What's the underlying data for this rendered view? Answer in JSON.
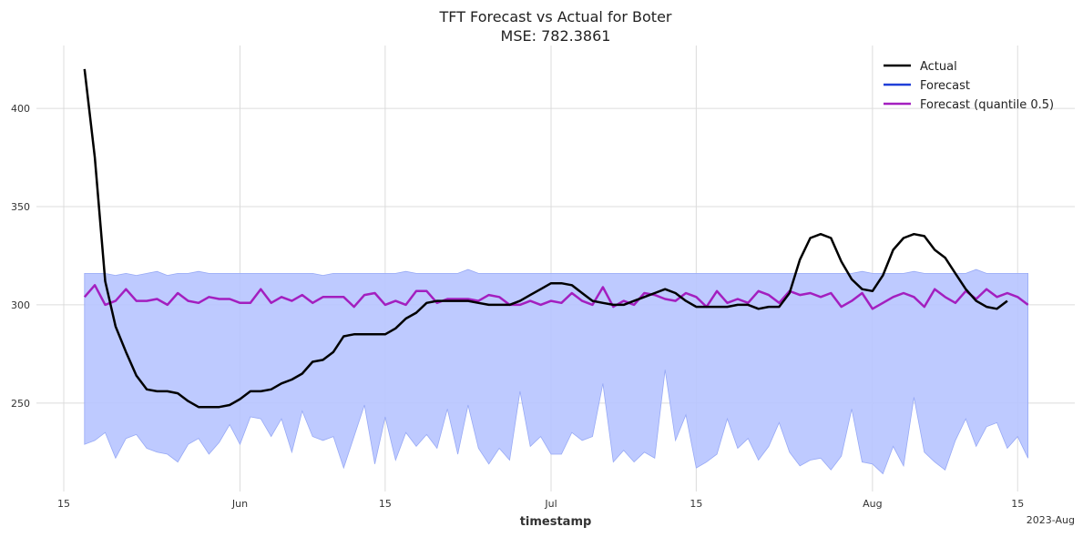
{
  "chart_data": {
    "type": "line",
    "title": "TFT Forecast vs Actual for Boter",
    "subtitle": "MSE: 782.3861",
    "xlabel": "timestamp",
    "ylabel": "",
    "x_start": "2023-05-17",
    "xlim": [
      "2023-05-15",
      "2023-08-17"
    ],
    "ylim": [
      205,
      432
    ],
    "grid": true,
    "legend_position": "top-right",
    "x_ticks": [
      {
        "date": "2023-05-15",
        "label": "15"
      },
      {
        "date": "2023-06-01",
        "label": "Jun"
      },
      {
        "date": "2023-06-15",
        "label": "15"
      },
      {
        "date": "2023-07-01",
        "label": "Jul"
      },
      {
        "date": "2023-07-15",
        "label": "15"
      },
      {
        "date": "2023-08-01",
        "label": "Aug"
      },
      {
        "date": "2023-08-15",
        "label": "15"
      }
    ],
    "x_offset_label": "2023-Aug",
    "y_ticks": [
      250,
      300,
      350,
      400
    ],
    "colors": {
      "actual": "#000000",
      "forecast": "#1f3fd8",
      "quantile": "#a31fbf",
      "band_fill": "#b7c4ff",
      "band_edge": "#97a9f5"
    },
    "series": [
      {
        "name": "Actual",
        "values": [
          420,
          375,
          312,
          289,
          276,
          264,
          257,
          256,
          256,
          255,
          251,
          248,
          248,
          248,
          249,
          252,
          256,
          256,
          257,
          260,
          262,
          265,
          271,
          272,
          276,
          284,
          285,
          285,
          285,
          285,
          288,
          293,
          296,
          301,
          302,
          302,
          302,
          302,
          301,
          300,
          300,
          300,
          302,
          305,
          308,
          311,
          311,
          310,
          306,
          302,
          301,
          300,
          300,
          302,
          304,
          306,
          308,
          306,
          302,
          299,
          299,
          299,
          299,
          300,
          300,
          298,
          299,
          299,
          306,
          323,
          334,
          336,
          334,
          322,
          313,
          308,
          307,
          315,
          328,
          334,
          336,
          335,
          328,
          324,
          316,
          308,
          302,
          299,
          298,
          302
        ]
      },
      {
        "name": "Forecast",
        "values": []
      },
      {
        "name": "Forecast (quantile 0.5)",
        "values": [
          304,
          310,
          300,
          302,
          308,
          302,
          302,
          303,
          300,
          306,
          302,
          301,
          304,
          303,
          303,
          301,
          301,
          308,
          301,
          304,
          302,
          305,
          301,
          304,
          304,
          304,
          299,
          305,
          306,
          300,
          302,
          300,
          307,
          307,
          301,
          303,
          303,
          303,
          302,
          305,
          304,
          300,
          300,
          302,
          300,
          302,
          301,
          306,
          302,
          300,
          309,
          299,
          302,
          300,
          306,
          305,
          303,
          302,
          306,
          304,
          299,
          307,
          301,
          303,
          301,
          307,
          305,
          301,
          307,
          305,
          306,
          304,
          306,
          299,
          302,
          306,
          298,
          301,
          304,
          306,
          304,
          299,
          308,
          304,
          301,
          307,
          303,
          308,
          304,
          306,
          304,
          300
        ]
      },
      {
        "name": "",
        "values_low": [
          229,
          231,
          235,
          222,
          232,
          234,
          227,
          225,
          224,
          220,
          229,
          232,
          224,
          230,
          239,
          229,
          243,
          242,
          233,
          242,
          225,
          246,
          233,
          231,
          233,
          217,
          233,
          249,
          219,
          243,
          221,
          235,
          228,
          234,
          227,
          247,
          224,
          249,
          227,
          219,
          227,
          221,
          256,
          228,
          233,
          224,
          224,
          235,
          231,
          233,
          260,
          220,
          226,
          220,
          225,
          222,
          267,
          231,
          244,
          217,
          220,
          224,
          242,
          227,
          232,
          221,
          228,
          240,
          225,
          218,
          221,
          222,
          216,
          223,
          247,
          220,
          219,
          214,
          228,
          218,
          253,
          225,
          220,
          216,
          231,
          242,
          228,
          238,
          240,
          227,
          233,
          222
        ],
        "values_high": [
          316,
          316,
          316,
          315,
          316,
          315,
          316,
          317,
          315,
          316,
          316,
          317,
          316,
          316,
          316,
          316,
          316,
          316,
          316,
          316,
          316,
          316,
          316,
          315,
          316,
          316,
          316,
          316,
          316,
          316,
          316,
          317,
          316,
          316,
          316,
          316,
          316,
          318,
          316,
          316,
          316,
          316,
          316,
          316,
          316,
          316,
          316,
          316,
          316,
          316,
          316,
          316,
          316,
          316,
          316,
          316,
          316,
          316,
          316,
          316,
          316,
          316,
          316,
          316,
          316,
          316,
          316,
          316,
          316,
          316,
          316,
          316,
          316,
          316,
          316,
          317,
          316,
          316,
          316,
          316,
          317,
          316,
          316,
          316,
          316,
          316,
          318,
          316,
          316,
          316,
          316,
          316
        ]
      }
    ]
  }
}
